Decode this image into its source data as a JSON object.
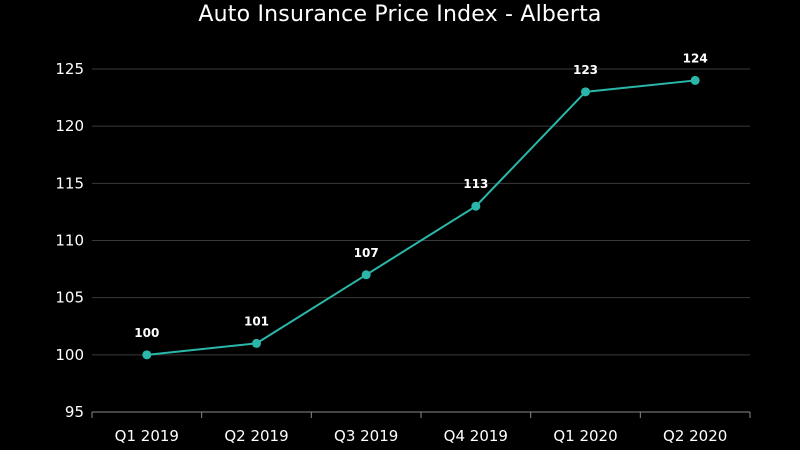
{
  "chart_data": {
    "type": "line",
    "title": "Auto Insurance Price Index - Alberta",
    "categories": [
      "Q1 2019",
      "Q2 2019",
      "Q3 2019",
      "Q4 2019",
      "Q1 2020",
      "Q2 2020"
    ],
    "series": [
      {
        "values": [
          100,
          101,
          107,
          113,
          123,
          124
        ],
        "color": "#2ab7a9"
      }
    ],
    "yticks": [
      "95",
      "100",
      "105",
      "110",
      "115",
      "120",
      "125"
    ],
    "ylim": [
      95,
      125
    ],
    "xlabel": "",
    "ylabel": "",
    "grid": true,
    "data_labels": [
      "100",
      "101",
      "107",
      "113",
      "123",
      "124"
    ]
  }
}
